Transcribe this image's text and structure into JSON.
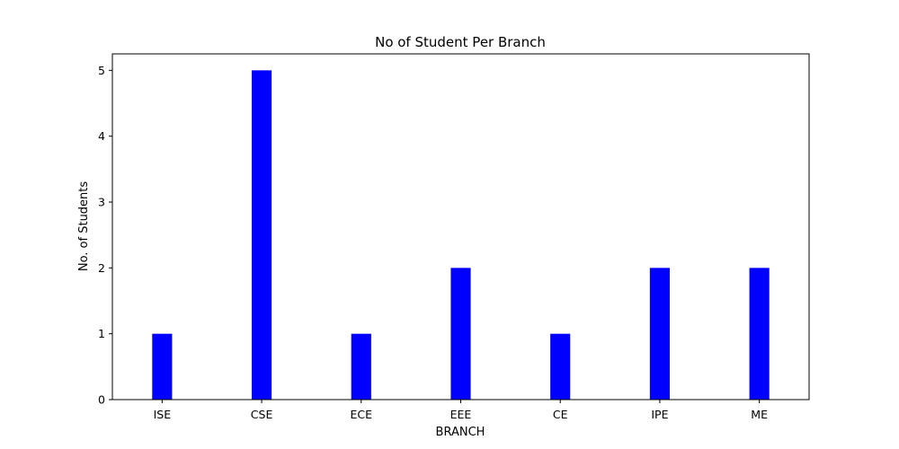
{
  "chart_data": {
    "type": "bar",
    "title": "No of Student Per Branch",
    "xlabel": "BRANCH",
    "ylabel": "No. of Students",
    "categories": [
      "ISE",
      "CSE",
      "ECE",
      "EEE",
      "CE",
      "IPE",
      "ME"
    ],
    "values": [
      1,
      5,
      1,
      2,
      1,
      2,
      2
    ],
    "ylim": [
      0,
      5.25
    ],
    "yticks": [
      0,
      1,
      2,
      3,
      4,
      5
    ],
    "bar_color": "#0000ff",
    "grid": false,
    "legend": "none"
  }
}
